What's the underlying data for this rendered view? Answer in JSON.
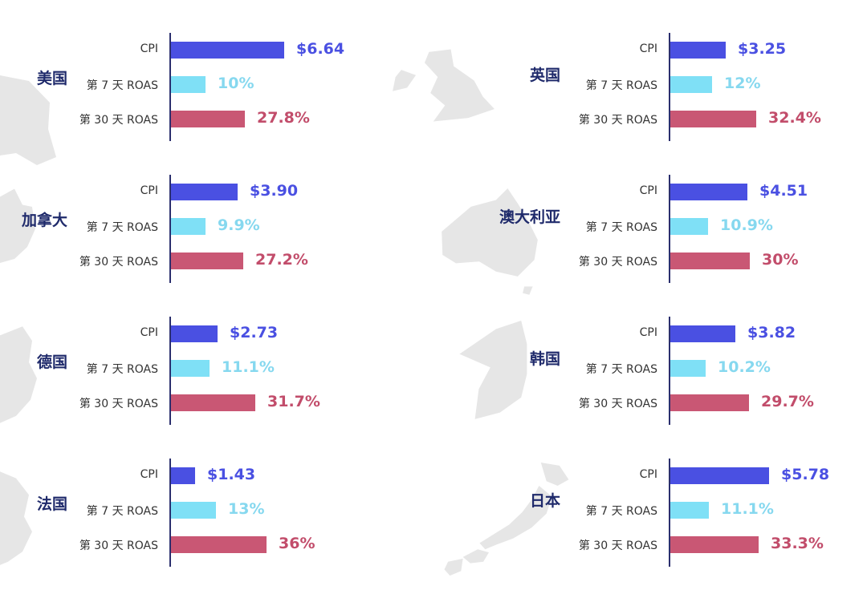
{
  "labels": {
    "cpi": "CPI",
    "d7": "第 7 天 ROAS",
    "d30": "第 30 天 ROAS"
  },
  "colors": {
    "cpi": "#4a50e2",
    "d7": "#7fe0f6",
    "d30": "#c95774",
    "cpi_text": "#4a50e2",
    "d7_text": "#86d8ef",
    "d30_text": "#c24d6b",
    "country": "#1f2a6b",
    "axis": "#2b2f6e",
    "map": "#e6e6e6"
  },
  "chart_data": [
    {
      "type": "bar",
      "country": "美国",
      "map_icon": "usa-map-icon",
      "metrics": [
        "CPI",
        "第 7 天 ROAS",
        "第 30 天 ROAS"
      ],
      "cpi": 6.64,
      "d7": 10,
      "d30": 27.8,
      "cpi_label": "$6.64",
      "d7_label": "10%",
      "d30_label": "27.8%"
    },
    {
      "type": "bar",
      "country": "英国",
      "map_icon": "uk-map-icon",
      "metrics": [
        "CPI",
        "第 7 天 ROAS",
        "第 30 天 ROAS"
      ],
      "cpi": 3.25,
      "d7": 12,
      "d30": 32.4,
      "cpi_label": "$3.25",
      "d7_label": "12%",
      "d30_label": "32.4%"
    },
    {
      "type": "bar",
      "country": "加拿大",
      "map_icon": "canada-map-icon",
      "metrics": [
        "CPI",
        "第 7 天 ROAS",
        "第 30 天 ROAS"
      ],
      "cpi": 3.9,
      "d7": 9.9,
      "d30": 27.2,
      "cpi_label": "$3.90",
      "d7_label": "9.9%",
      "d30_label": "27.2%"
    },
    {
      "type": "bar",
      "country": "澳大利亚",
      "map_icon": "australia-map-icon",
      "metrics": [
        "CPI",
        "第 7 天 ROAS",
        "第 30 天 ROAS"
      ],
      "cpi": 4.51,
      "d7": 10.9,
      "d30": 30,
      "cpi_label": "$4.51",
      "d7_label": "10.9%",
      "d30_label": "30%"
    },
    {
      "type": "bar",
      "country": "德国",
      "map_icon": "germany-map-icon",
      "metrics": [
        "CPI",
        "第 7 天 ROAS",
        "第 30 天 ROAS"
      ],
      "cpi": 2.73,
      "d7": 11.1,
      "d30": 31.7,
      "cpi_label": "$2.73",
      "d7_label": "11.1%",
      "d30_label": "31.7%"
    },
    {
      "type": "bar",
      "country": "韩国",
      "map_icon": "korea-map-icon",
      "metrics": [
        "CPI",
        "第 7 天 ROAS",
        "第 30 天 ROAS"
      ],
      "cpi": 3.82,
      "d7": 10.2,
      "d30": 29.7,
      "cpi_label": "$3.82",
      "d7_label": "10.2%",
      "d30_label": "29.7%"
    },
    {
      "type": "bar",
      "country": "法国",
      "map_icon": "france-map-icon",
      "metrics": [
        "CPI",
        "第 7 天 ROAS",
        "第 30 天 ROAS"
      ],
      "cpi": 1.43,
      "d7": 13,
      "d30": 36,
      "cpi_label": "$1.43",
      "d7_label": "13%",
      "d30_label": "36%"
    },
    {
      "type": "bar",
      "country": "日本",
      "map_icon": "japan-map-icon",
      "metrics": [
        "CPI",
        "第 7 天 ROAS",
        "第 30 天 ROAS"
      ],
      "cpi": 5.78,
      "d7": 11.1,
      "d30": 33.3,
      "cpi_label": "$5.78",
      "d7_label": "11.1%",
      "d30_label": "33.3%"
    }
  ]
}
